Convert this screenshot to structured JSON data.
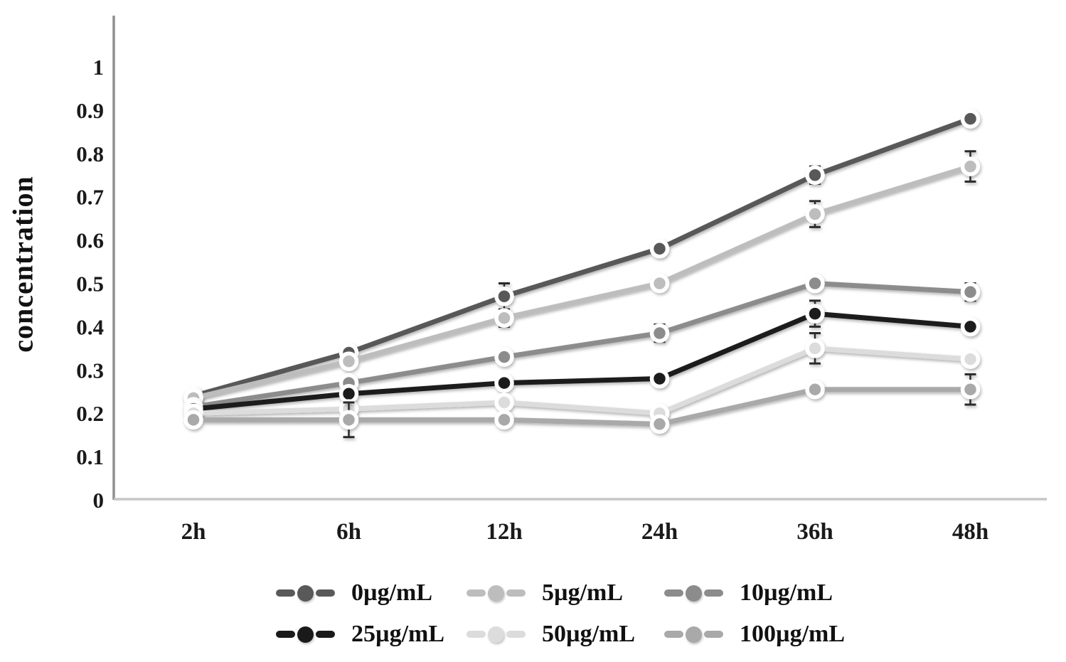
{
  "chart_data": {
    "type": "line",
    "title": "",
    "xlabel": "",
    "ylabel": "concentration",
    "categories": [
      "2h",
      "6h",
      "12h",
      "24h",
      "36h",
      "48h"
    ],
    "ylim": [
      0,
      1
    ],
    "ytick_labels": [
      "0",
      "0.1",
      "0.2",
      "0.3",
      "0.4",
      "0.5",
      "0.6",
      "0.7",
      "0.8",
      "0.9",
      "1"
    ],
    "grid": false,
    "legend_position": "bottom",
    "series": [
      {
        "name": "0µg/mL",
        "color": "#595959",
        "values": [
          0.24,
          0.34,
          0.47,
          0.58,
          0.75,
          0.88
        ],
        "errors": [
          null,
          null,
          0.03,
          null,
          0.02,
          null
        ]
      },
      {
        "name": "5µg/mL",
        "color": "#bdbdbd",
        "values": [
          0.235,
          0.32,
          0.42,
          0.5,
          0.66,
          0.77
        ],
        "errors": [
          null,
          null,
          0.02,
          null,
          0.03,
          0.035
        ]
      },
      {
        "name": "10µg/mL",
        "color": "#8c8c8c",
        "values": [
          0.215,
          0.27,
          0.33,
          0.385,
          0.5,
          0.48
        ],
        "errors": [
          null,
          null,
          null,
          0.02,
          0.015,
          0.02
        ]
      },
      {
        "name": "25µg/mL",
        "color": "#1a1a1a",
        "values": [
          0.21,
          0.245,
          0.27,
          0.28,
          0.43,
          0.4
        ],
        "errors": [
          null,
          null,
          null,
          null,
          0.03,
          null
        ]
      },
      {
        "name": "50µg/mL",
        "color": "#dcdcdc",
        "values": [
          0.2,
          0.21,
          0.225,
          0.2,
          0.35,
          0.325
        ],
        "errors": [
          null,
          null,
          null,
          0.015,
          0.035,
          0.015
        ]
      },
      {
        "name": "100µg/mL",
        "color": "#a9a9a9",
        "values": [
          0.185,
          0.185,
          0.185,
          0.175,
          0.255,
          0.255
        ],
        "errors": [
          null,
          0.04,
          null,
          0.01,
          null,
          0.035
        ]
      }
    ],
    "axis_line_color": "#8f8f8f",
    "x_axis_line_color": "#c6c6c6",
    "error_bar_color": "#2b2b2b",
    "tick_text_color": "#1a1a1a"
  }
}
